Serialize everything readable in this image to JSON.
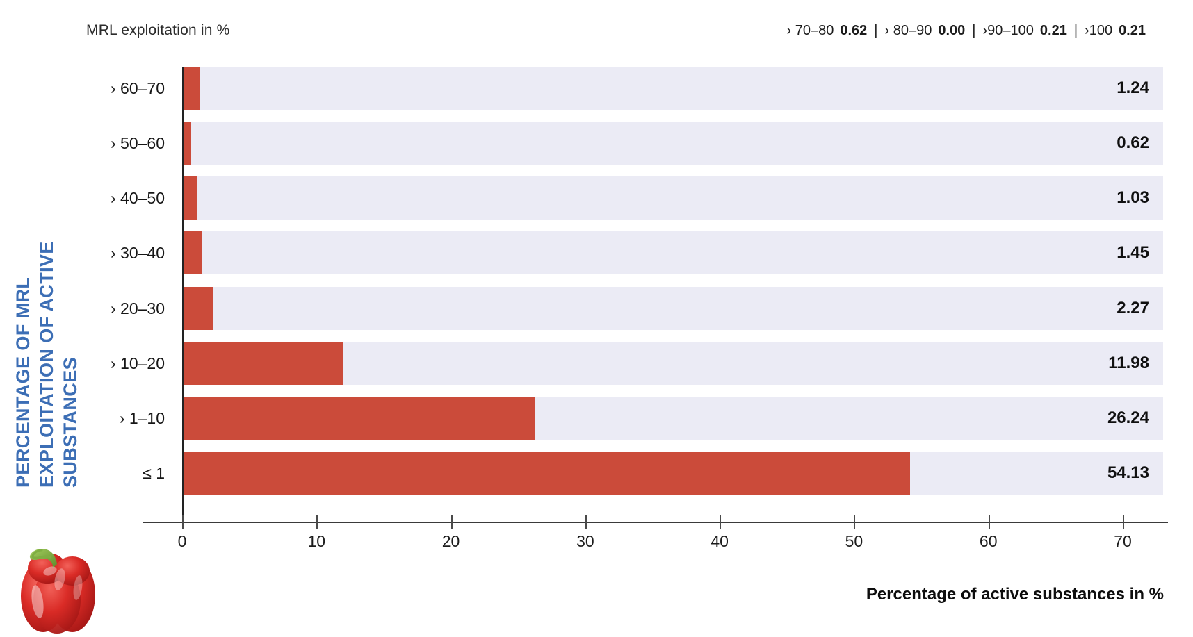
{
  "header": {
    "y_axis_title": "MRL exploitation in %"
  },
  "side_title": {
    "lines": [
      "PERCENTAGE OF MRL",
      "EXPLOITATION OF ACTIVE",
      "SUBSTANCES"
    ]
  },
  "footer": {
    "x_axis_label": "Percentage of active substances in %"
  },
  "icons": {
    "pepper_icon": "red-bell-pepper-photo"
  },
  "chart_data": {
    "type": "bar",
    "orientation": "horizontal",
    "title": "MRL exploitation in %",
    "xlabel": "Percentage of active substances in %",
    "ylabel": "MRL exploitation in %",
    "categories": [
      "› 60–70",
      "› 50–60",
      "› 40–50",
      "› 30–40",
      "› 20–30",
      "› 10–20",
      "› 1–10",
      "≤ 1"
    ],
    "values": [
      1.24,
      0.62,
      1.03,
      1.45,
      2.27,
      11.98,
      26.24,
      54.13
    ],
    "overflow_legend": [
      {
        "range": "› 70–80",
        "value": 0.62
      },
      {
        "range": "› 80–90",
        "value": 0.0
      },
      {
        "range": "›90–100",
        "value": 0.21
      },
      {
        "range": "›100",
        "value": 0.21
      }
    ],
    "x_ticks": [
      0,
      10,
      20,
      30,
      40,
      50,
      60,
      70
    ],
    "xlim": [
      0,
      73
    ],
    "grid": false,
    "legend_position": "top-right",
    "bar_color": "#cb4b3a",
    "track_color": "#ebebf5",
    "accent_blue": "#3c6eb5"
  }
}
